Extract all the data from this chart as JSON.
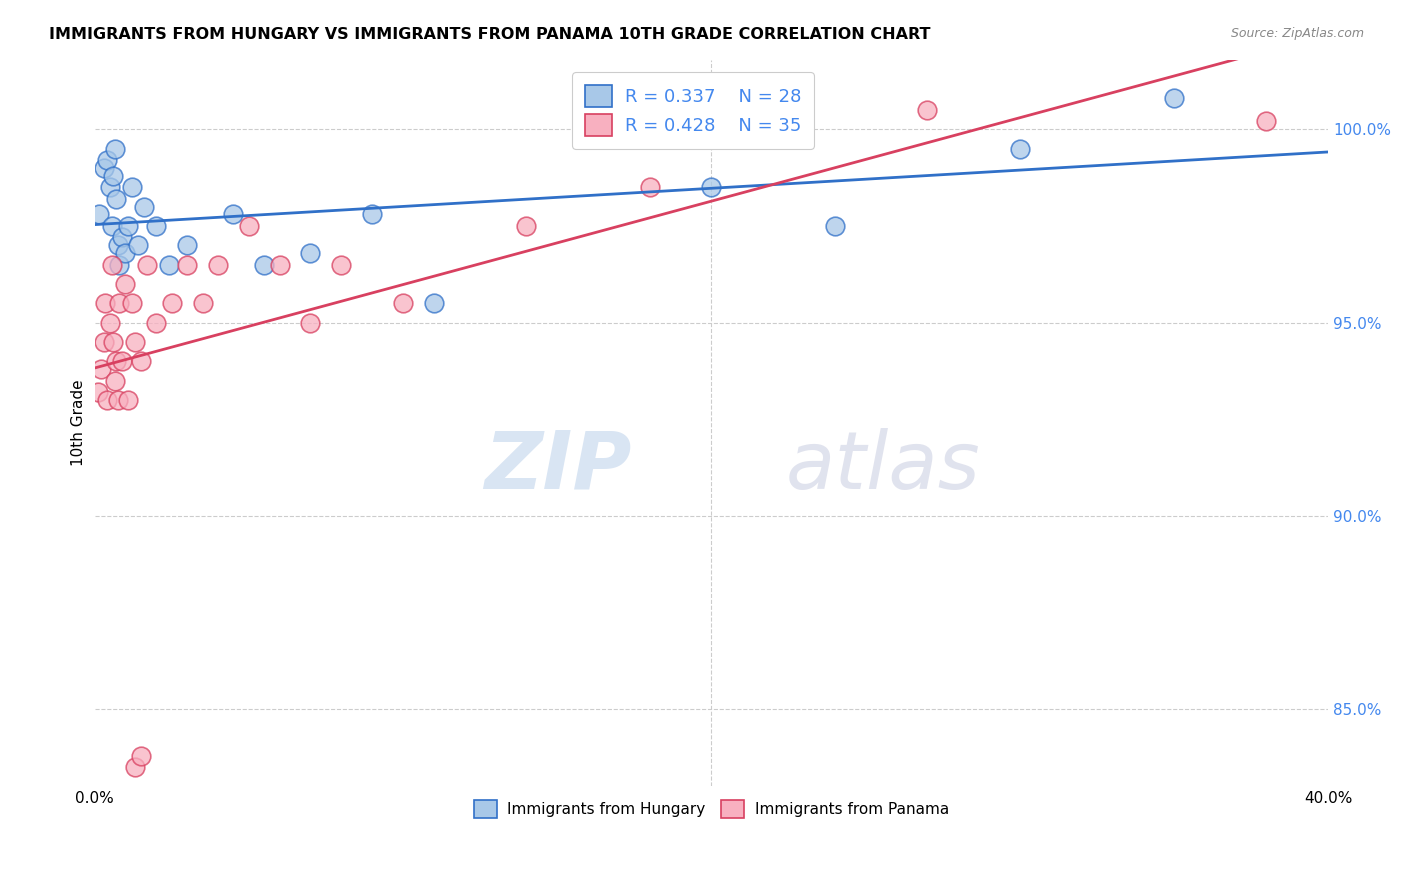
{
  "title": "IMMIGRANTS FROM HUNGARY VS IMMIGRANTS FROM PANAMA 10TH GRADE CORRELATION CHART",
  "source": "Source: ZipAtlas.com",
  "ylabel": "10th Grade",
  "yticks": [
    100.0,
    95.0,
    90.0,
    85.0
  ],
  "ytick_labels": [
    "100.0%",
    "95.0%",
    "90.0%",
    "85.0%"
  ],
  "xlim": [
    0.0,
    40.0
  ],
  "ylim": [
    83.0,
    101.8
  ],
  "watermark_zip": "ZIP",
  "watermark_atlas": "atlas",
  "hungary_R": 0.337,
  "hungary_N": 28,
  "panama_R": 0.428,
  "panama_N": 35,
  "hungary_color": "#a8c8e8",
  "panama_color": "#f8b0c0",
  "hungary_line_color": "#3070c8",
  "panama_line_color": "#d84060",
  "hungary_x": [
    0.15,
    0.3,
    0.4,
    0.5,
    0.55,
    0.6,
    0.65,
    0.7,
    0.75,
    0.8,
    0.9,
    1.0,
    1.1,
    1.2,
    1.4,
    1.6,
    2.0,
    2.4,
    3.0,
    4.5,
    5.5,
    7.0,
    9.0,
    11.0,
    20.0,
    24.0,
    30.0,
    35.0
  ],
  "hungary_y": [
    97.8,
    99.0,
    99.2,
    98.5,
    97.5,
    98.8,
    99.5,
    98.2,
    97.0,
    96.5,
    97.2,
    96.8,
    97.5,
    98.5,
    97.0,
    98.0,
    97.5,
    96.5,
    97.0,
    97.8,
    96.5,
    96.8,
    97.8,
    95.5,
    98.5,
    97.5,
    99.5,
    100.8
  ],
  "panama_x": [
    0.1,
    0.2,
    0.3,
    0.35,
    0.4,
    0.5,
    0.55,
    0.6,
    0.65,
    0.7,
    0.75,
    0.8,
    0.9,
    1.0,
    1.1,
    1.2,
    1.3,
    1.5,
    1.7,
    2.0,
    2.5,
    3.0,
    3.5,
    4.0,
    5.0,
    6.0,
    7.0,
    8.0,
    10.0,
    14.0,
    1.3,
    1.5,
    18.0,
    27.0,
    38.0
  ],
  "panama_y": [
    93.2,
    93.8,
    94.5,
    95.5,
    93.0,
    95.0,
    96.5,
    94.5,
    93.5,
    94.0,
    93.0,
    95.5,
    94.0,
    96.0,
    93.0,
    95.5,
    94.5,
    94.0,
    96.5,
    95.0,
    95.5,
    96.5,
    95.5,
    96.5,
    97.5,
    96.5,
    95.0,
    96.5,
    95.5,
    97.5,
    83.5,
    83.8,
    98.5,
    100.5,
    100.2
  ]
}
